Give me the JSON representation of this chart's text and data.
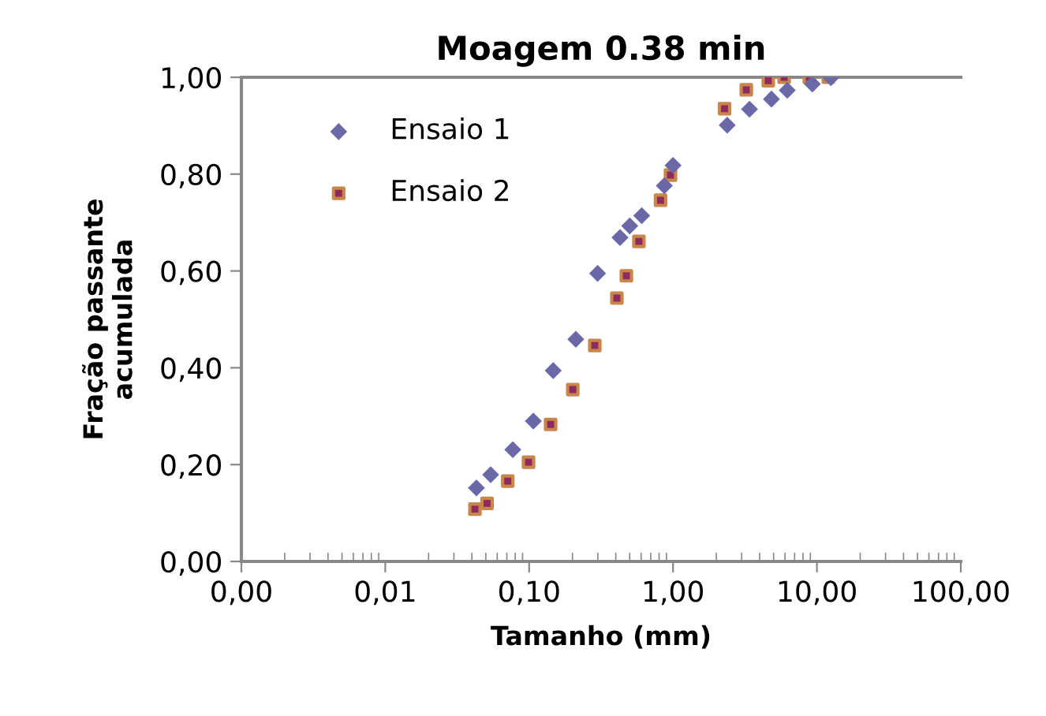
{
  "chart_data": {
    "type": "scatter",
    "title": "Moagem 0.38 min",
    "xlabel": "Tamanho (mm)",
    "ylabel": "Fração passante\nacumulada",
    "log": "x",
    "xlim": [
      0.001,
      100
    ],
    "xticks": [
      {
        "value": 0.001,
        "label": "0,00"
      },
      {
        "value": 0.01,
        "label": "0,01"
      },
      {
        "value": 0.1,
        "label": "0,10"
      },
      {
        "value": 1,
        "label": "1,00"
      },
      {
        "value": 10,
        "label": "10,00"
      },
      {
        "value": 100,
        "label": "100,00"
      }
    ],
    "ylim": [
      0,
      1
    ],
    "yticks": [
      {
        "value": 0,
        "label": "0,00"
      },
      {
        "value": 0.2,
        "label": "0,20"
      },
      {
        "value": 0.4,
        "label": "0,40"
      },
      {
        "value": 0.6,
        "label": "0,60"
      },
      {
        "value": 0.8,
        "label": "0,80"
      },
      {
        "value": 1,
        "label": "1,00"
      }
    ],
    "grid": false,
    "legend": "top left",
    "series": [
      {
        "name": "Ensaio 1",
        "color": "#6b68a8",
        "marker": "diamond",
        "x": [
          0.043,
          0.054,
          0.077,
          0.107,
          0.147,
          0.211,
          0.299,
          0.428,
          0.5,
          0.606,
          0.87,
          1.0,
          2.38,
          3.4,
          4.83,
          6.22,
          9.3,
          12.5
        ],
        "values": [
          0.152,
          0.179,
          0.231,
          0.29,
          0.394,
          0.459,
          0.595,
          0.669,
          0.693,
          0.714,
          0.776,
          0.818,
          0.901,
          0.934,
          0.955,
          0.973,
          0.986,
          0.999
        ]
      },
      {
        "name": "Ensaio 2",
        "color": "#8e2a5e",
        "marker": "square",
        "x": [
          0.042,
          0.051,
          0.071,
          0.099,
          0.141,
          0.201,
          0.286,
          0.407,
          0.474,
          0.579,
          0.819,
          0.96,
          2.28,
          3.23,
          4.59,
          5.92,
          8.85,
          12.0
        ],
        "values": [
          0.108,
          0.12,
          0.166,
          0.205,
          0.283,
          0.355,
          0.446,
          0.544,
          0.59,
          0.661,
          0.746,
          0.798,
          0.935,
          0.974,
          0.993,
          1.0,
          1.0,
          1.0
        ]
      }
    ]
  }
}
